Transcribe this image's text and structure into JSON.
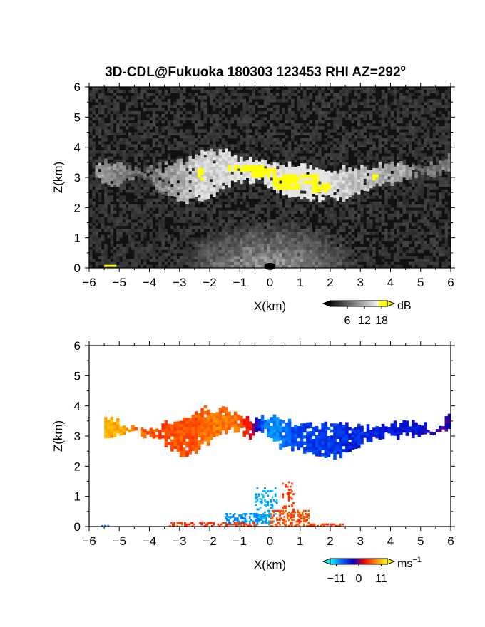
{
  "title": "3D-CDL@Fukuoka 180303 123453 RHI AZ=292",
  "title_suffix": "o",
  "chart_data": [
    {
      "type": "heatmap",
      "panel": "top",
      "quantity": "SNR",
      "xlabel": "X(km)",
      "ylabel": "Z(km)",
      "xlim": [
        -6,
        6
      ],
      "ylim": [
        0,
        6
      ],
      "xticks": [
        -6,
        -5,
        -4,
        -3,
        -2,
        -1,
        0,
        1,
        2,
        3,
        4,
        5,
        6
      ],
      "yticks": [
        0,
        1,
        2,
        3,
        4,
        5,
        6
      ],
      "colorbar": {
        "unit": "dB",
        "ticks": [
          6,
          12,
          18
        ],
        "range": [
          0,
          20
        ],
        "colors": [
          "#000000",
          "#ffffff",
          "#ffff00"
        ]
      },
      "background_value": 1,
      "cloud_layer": [
        {
          "x": -5.8,
          "zb": 3.0,
          "zt": 3.4,
          "v": 10
        },
        {
          "x": -5.3,
          "zb": 2.6,
          "zt": 3.5,
          "v": 9
        },
        {
          "x": -4.8,
          "zb": 2.9,
          "zt": 3.3,
          "v": 8
        },
        {
          "x": -4.2,
          "zb": 3.0,
          "zt": 3.2,
          "v": 6
        },
        {
          "x": -3.5,
          "zb": 2.5,
          "zt": 3.3,
          "v": 9
        },
        {
          "x": -2.8,
          "zb": 2.2,
          "zt": 3.5,
          "v": 12
        },
        {
          "x": -2.2,
          "zb": 2.3,
          "zt": 3.9,
          "v": 14
        },
        {
          "x": -1.6,
          "zb": 2.6,
          "zt": 3.8,
          "v": 14
        },
        {
          "x": -1.0,
          "zb": 2.9,
          "zt": 3.6,
          "v": 15
        },
        {
          "x": -0.4,
          "zb": 2.9,
          "zt": 3.5,
          "v": 16
        },
        {
          "x": 0.2,
          "zb": 2.6,
          "zt": 3.5,
          "v": 15
        },
        {
          "x": 0.8,
          "zb": 2.4,
          "zt": 3.4,
          "v": 16
        },
        {
          "x": 1.4,
          "zb": 2.3,
          "zt": 3.3,
          "v": 16
        },
        {
          "x": 2.0,
          "zb": 2.3,
          "zt": 3.2,
          "v": 15
        },
        {
          "x": 2.6,
          "zb": 2.3,
          "zt": 3.2,
          "v": 13
        },
        {
          "x": 3.2,
          "zb": 2.6,
          "zt": 3.3,
          "v": 12
        },
        {
          "x": 3.8,
          "zb": 2.8,
          "zt": 3.3,
          "v": 11
        },
        {
          "x": 4.4,
          "zb": 2.9,
          "zt": 3.4,
          "v": 11
        },
        {
          "x": 5.0,
          "zb": 3.1,
          "zt": 3.3,
          "v": 7
        },
        {
          "x": 5.6,
          "zb": 3.1,
          "zt": 3.4,
          "v": 8
        },
        {
          "x": 6.0,
          "zb": 3.2,
          "zt": 3.7,
          "v": 9
        }
      ],
      "high_snr_patches": [
        {
          "x": [
            -2.4,
            -2.2
          ],
          "z": [
            2.9,
            3.3
          ]
        },
        {
          "x": [
            -1.4,
            -0.2
          ],
          "z": [
            3.2,
            3.4
          ]
        },
        {
          "x": [
            -0.6,
            0.1
          ],
          "z": [
            3.0,
            3.3
          ]
        },
        {
          "x": [
            0.1,
            0.9
          ],
          "z": [
            2.6,
            3.0
          ]
        },
        {
          "x": [
            0.4,
            1.6
          ],
          "z": [
            2.8,
            3.1
          ]
        },
        {
          "x": [
            1.4,
            2.0
          ],
          "z": [
            2.5,
            2.8
          ]
        },
        {
          "x": [
            3.3,
            3.6
          ],
          "z": [
            2.9,
            3.1
          ]
        },
        {
          "x": [
            -5.5,
            -5.2
          ],
          "z": [
            0.0,
            0.06
          ]
        }
      ],
      "surface_return": {
        "x_half_width": 2.0,
        "z_top": 1.0,
        "v": 9
      }
    },
    {
      "type": "heatmap",
      "panel": "bottom",
      "quantity": "Doppler velocity",
      "xlabel": "X(km)",
      "ylabel": "Z(km)",
      "xlim": [
        -6,
        6
      ],
      "ylim": [
        0,
        6
      ],
      "xticks": [
        -6,
        -5,
        -4,
        -3,
        -2,
        -1,
        0,
        1,
        2,
        3,
        4,
        5,
        6
      ],
      "yticks": [
        0,
        1,
        2,
        3,
        4,
        5,
        6
      ],
      "colorbar": {
        "unit": "ms",
        "unit_exp": "−1",
        "ticks": [
          -11,
          0,
          11
        ],
        "tick_labels": [
          "−11",
          "0",
          "11"
        ],
        "range": [
          -14,
          14
        ],
        "colors": [
          "#00ffff",
          "#0066ff",
          "#0000cc",
          "#ff0000",
          "#ff8800",
          "#ffff00"
        ]
      },
      "cloud_layer": [
        {
          "x": -5.5,
          "zb": 2.9,
          "zt": 3.6,
          "v": 10
        },
        {
          "x": -5.0,
          "zb": 3.1,
          "zt": 3.4,
          "v": 10
        },
        {
          "x": -4.0,
          "zb": 3.0,
          "zt": 3.1,
          "v": 6
        },
        {
          "x": -3.5,
          "zb": 2.7,
          "zt": 3.3,
          "v": 6
        },
        {
          "x": -2.8,
          "zb": 2.3,
          "zt": 3.6,
          "v": 6
        },
        {
          "x": -2.2,
          "zb": 2.7,
          "zt": 3.9,
          "v": 7
        },
        {
          "x": -1.6,
          "zb": 3.1,
          "zt": 3.8,
          "v": 8
        },
        {
          "x": -1.0,
          "zb": 3.2,
          "zt": 3.6,
          "v": 7
        },
        {
          "x": -0.6,
          "zb": 2.9,
          "zt": 3.5,
          "v": 2
        },
        {
          "x": -0.2,
          "zb": 3.2,
          "zt": 3.6,
          "v": -9
        },
        {
          "x": 0.2,
          "zb": 2.7,
          "zt": 3.6,
          "v": -10
        },
        {
          "x": 0.8,
          "zb": 2.6,
          "zt": 3.4,
          "v": -7
        },
        {
          "x": 1.4,
          "zb": 2.5,
          "zt": 3.3,
          "v": -6
        },
        {
          "x": 2.0,
          "zb": 2.3,
          "zt": 3.3,
          "v": -6
        },
        {
          "x": 2.6,
          "zb": 2.4,
          "zt": 3.3,
          "v": -5
        },
        {
          "x": 3.2,
          "zb": 2.9,
          "zt": 3.3,
          "v": -5
        },
        {
          "x": 3.8,
          "zb": 3.0,
          "zt": 3.3,
          "v": -4
        },
        {
          "x": 4.4,
          "zb": 3.0,
          "zt": 3.4,
          "v": -4
        },
        {
          "x": 5.6,
          "zb": 3.1,
          "zt": 3.2,
          "v": -2
        },
        {
          "x": 6.0,
          "zb": 3.2,
          "zt": 3.7,
          "v": -2
        }
      ],
      "lower_blobs": [
        {
          "x": [
            -1.5,
            0.0
          ],
          "z": [
            0.05,
            0.4
          ],
          "v": -10
        },
        {
          "x": [
            -0.5,
            0.2
          ],
          "z": [
            0.1,
            1.3
          ],
          "v": -11
        },
        {
          "x": [
            0.0,
            1.3
          ],
          "z": [
            0.0,
            0.5
          ],
          "v": 6
        },
        {
          "x": [
            0.4,
            0.8
          ],
          "z": [
            0.5,
            1.5
          ],
          "v": 5
        },
        {
          "x": [
            -3.4,
            -0.5
          ],
          "z": [
            0.0,
            0.12
          ],
          "v": 5
        },
        {
          "x": [
            1.3,
            2.4
          ],
          "z": [
            0.0,
            0.1
          ],
          "v": 5
        },
        {
          "x": [
            -5.6,
            -5.3
          ],
          "z": [
            0.0,
            0.05
          ],
          "v": -9
        }
      ]
    }
  ]
}
